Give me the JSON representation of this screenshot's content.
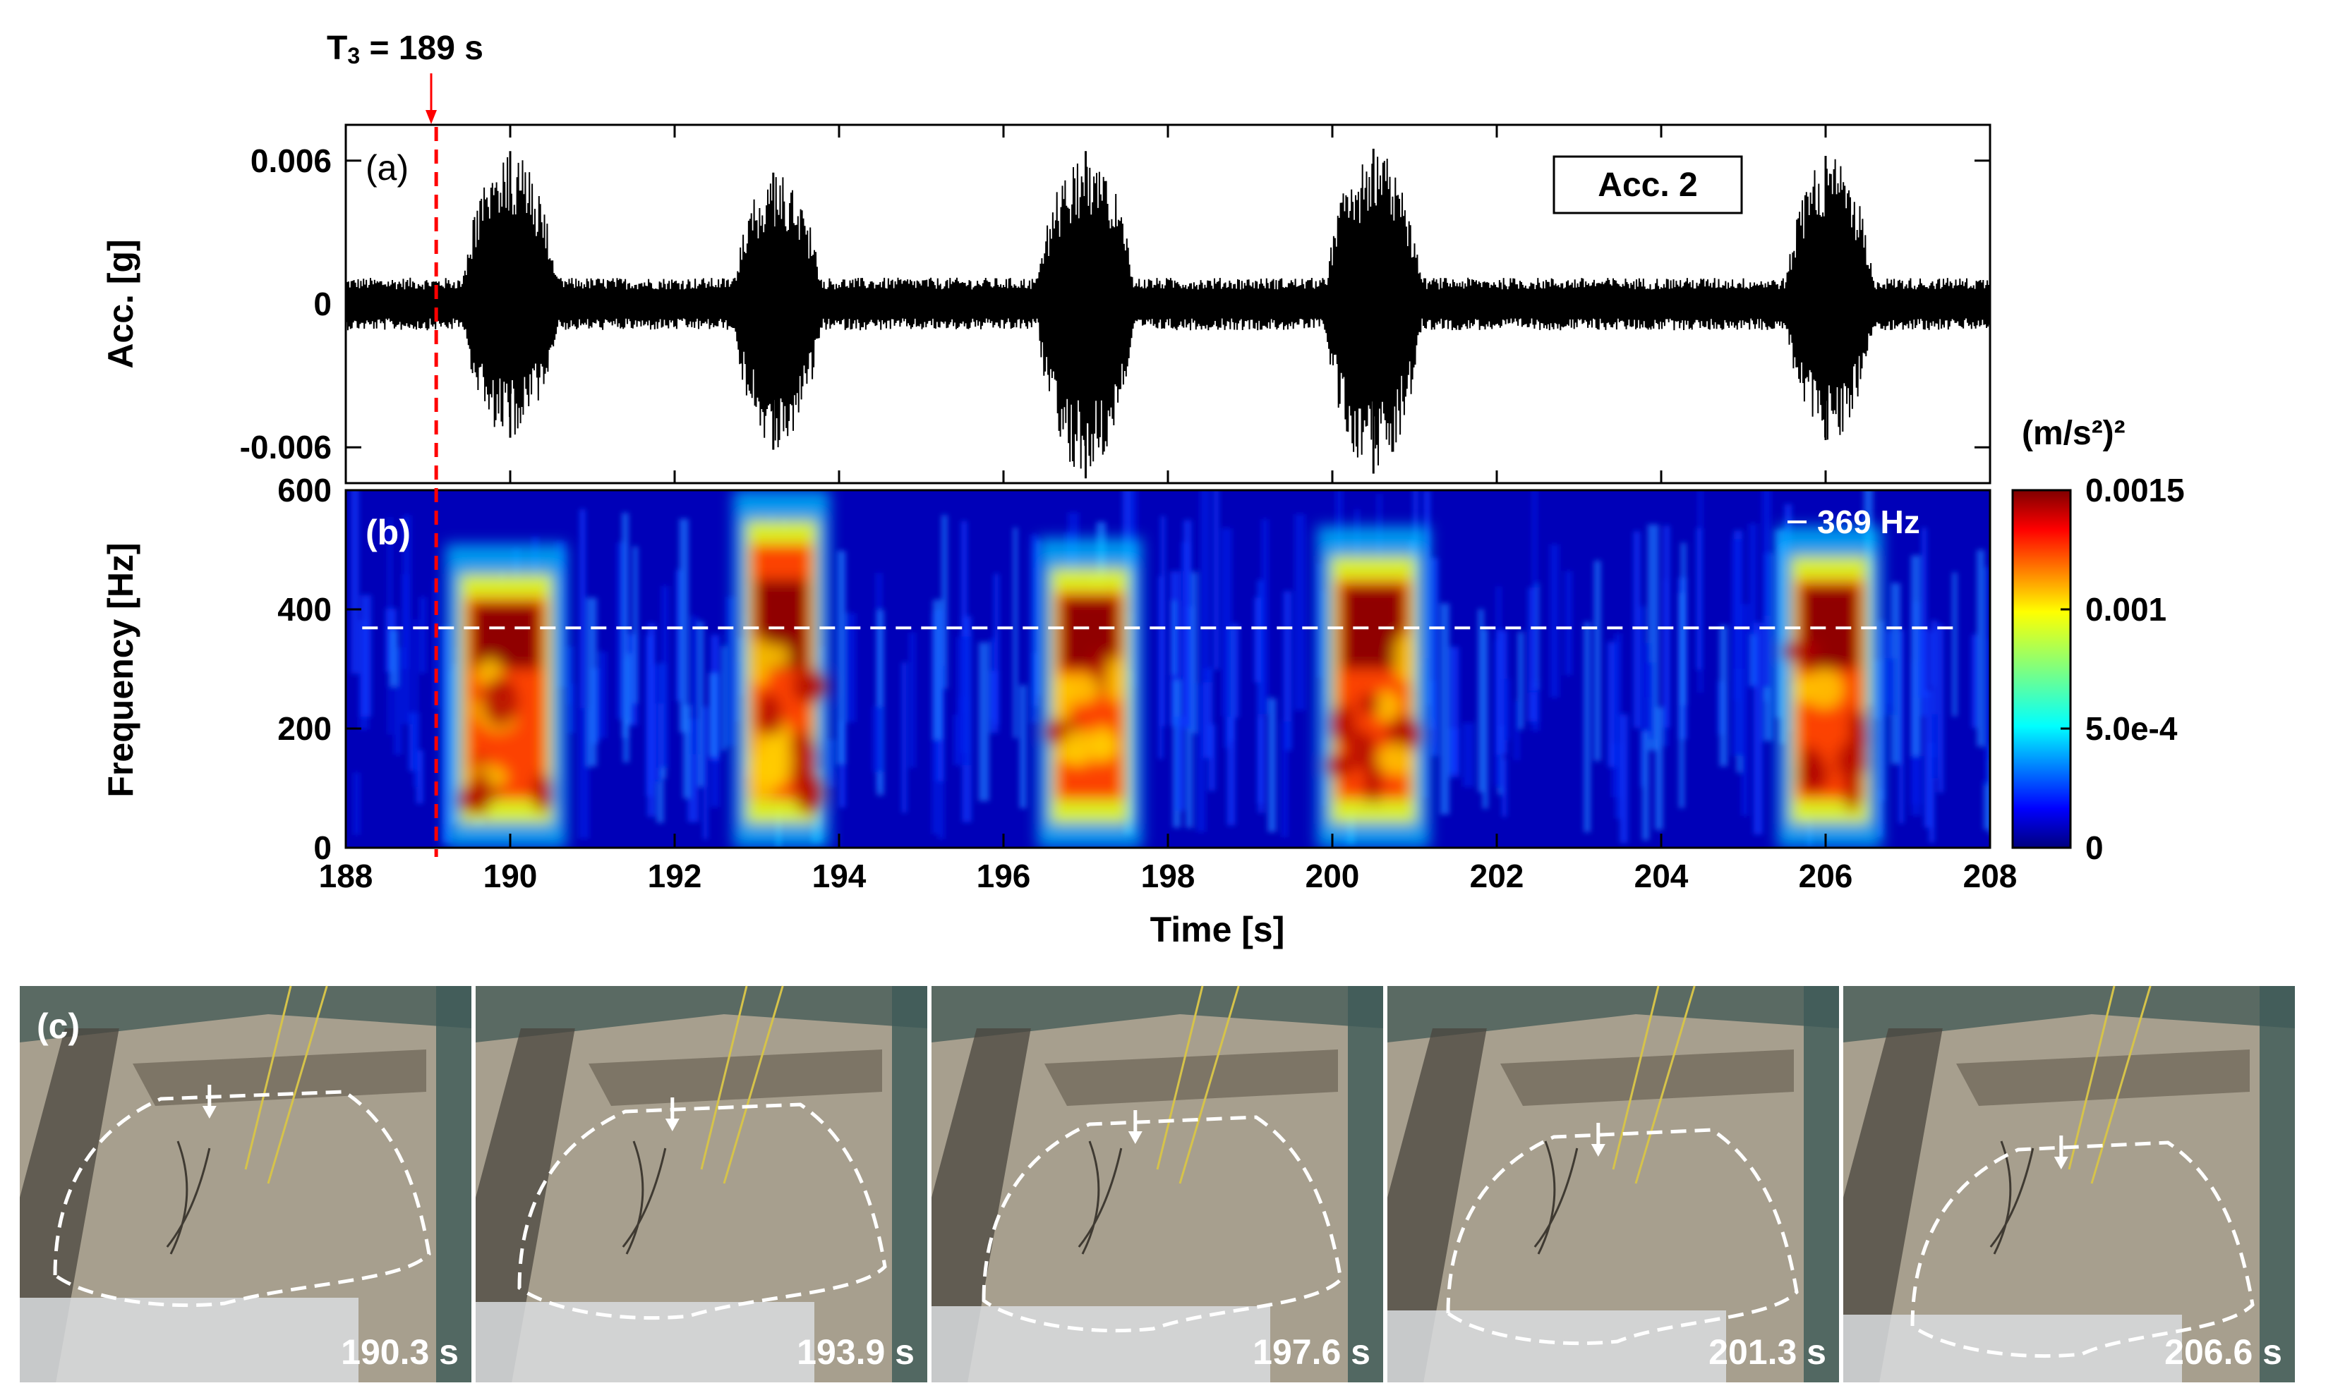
{
  "annotation": {
    "t3_label": "T",
    "t3_sub": "3",
    "t3_value": " = 189 s",
    "t3_time": 189.1
  },
  "chart_data": [
    {
      "type": "line",
      "panel": "(a)",
      "ylabel": "Acc. [g]",
      "legend": "Acc. 2",
      "legend_position": "top-right",
      "xlim": [
        188,
        208
      ],
      "ylim": [
        -0.0075,
        0.0075
      ],
      "yticks": [
        -0.006,
        0,
        0.006
      ],
      "ytick_labels": [
        "-0.006",
        "0",
        "0.006"
      ],
      "noise_amplitude": 0.0011,
      "bursts": [
        {
          "start": 189.4,
          "end": 190.6,
          "peak_pos": 190.0,
          "peak": 0.0064,
          "min": -0.0056
        },
        {
          "start": 192.7,
          "end": 193.8,
          "peak_pos": 193.2,
          "peak": 0.0055,
          "min": -0.0061
        },
        {
          "start": 196.4,
          "end": 197.6,
          "peak_pos": 197.0,
          "peak": 0.0064,
          "min": -0.0073
        },
        {
          "start": 199.9,
          "end": 201.1,
          "peak_pos": 200.5,
          "peak": 0.0065,
          "min": -0.0071
        },
        {
          "start": 205.5,
          "end": 206.6,
          "peak_pos": 206.0,
          "peak": 0.0062,
          "min": -0.0057
        }
      ]
    },
    {
      "type": "heatmap",
      "panel": "(b)",
      "xlabel": "Time [s]",
      "ylabel": "Frequency [Hz]",
      "xlim": [
        188,
        208
      ],
      "ylim": [
        0,
        600
      ],
      "xticks": [
        188,
        190,
        192,
        194,
        196,
        198,
        200,
        202,
        204,
        206,
        208
      ],
      "yticks": [
        0,
        200,
        400,
        600
      ],
      "reference_line": {
        "value": 369,
        "label": "369 Hz"
      },
      "colorbar": {
        "title": "(m/s²)²",
        "range": [
          0,
          0.0015
        ],
        "ticks": [
          0,
          0.0005,
          0.001,
          0.0015
        ],
        "tick_labels": [
          "0",
          "5.0e-4",
          "0.001",
          "0.0015"
        ],
        "colormap": "jet"
      },
      "high_energy_regions": [
        {
          "start": 189.3,
          "end": 190.6,
          "fmax": 490
        },
        {
          "start": 192.8,
          "end": 193.8,
          "fmax": 580
        },
        {
          "start": 196.5,
          "end": 197.6,
          "fmax": 500
        },
        {
          "start": 199.9,
          "end": 201.1,
          "fmax": 520
        },
        {
          "start": 205.5,
          "end": 206.6,
          "fmax": 520
        }
      ]
    }
  ],
  "photos": {
    "panel_label": "(c)",
    "frames": [
      {
        "time_label": "190.3 s"
      },
      {
        "time_label": "193.9 s"
      },
      {
        "time_label": "197.6 s"
      },
      {
        "time_label": "201.3 s"
      },
      {
        "time_label": "206.6 s"
      }
    ]
  }
}
